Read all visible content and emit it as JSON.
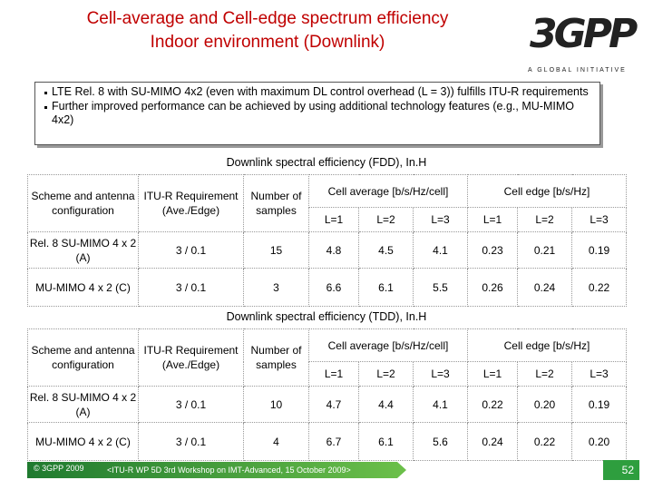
{
  "title": [
    "Cell-average and Cell-edge spectrum efficiency",
    "Indoor environment (Downlink)"
  ],
  "logo": {
    "name": "3GPP",
    "tagline": "A GLOBAL INITIATIVE"
  },
  "bullets": [
    "LTE Rel. 8 with SU-MIMO 4x2 (even with maximum DL control overhead (L = 3)) fulfills ITU-R requirements",
    "Further improved performance can be achieved by using additional technology features (e.g., MU-MIMO 4x2)"
  ],
  "tables": [
    {
      "caption": "Downlink spectral efficiency (FDD), In.H",
      "headers": [
        "Scheme and antenna configuration",
        "ITU-R Requirement (Ave./Edge)",
        "Number of samples",
        "Cell average [b/s/Hz/cell]",
        "Cell edge [b/s/Hz]"
      ],
      "sub_headers": [
        "L=1",
        "L=2",
        "L=3",
        "L=1",
        "L=2",
        "L=3"
      ],
      "rows": [
        [
          "Rel. 8 SU-MIMO 4 x 2 (A)",
          "3 / 0.1",
          "15",
          "4.8",
          "4.5",
          "4.1",
          "0.23",
          "0.21",
          "0.19"
        ],
        [
          "MU-MIMO 4 x 2 (C)",
          "3 / 0.1",
          "3",
          "6.6",
          "6.1",
          "5.5",
          "0.26",
          "0.24",
          "0.22"
        ]
      ]
    },
    {
      "caption": "Downlink spectral efficiency (TDD), In.H",
      "headers": [
        "Scheme and antenna configuration",
        "ITU-R Requirement (Ave./Edge)",
        "Number of samples",
        "Cell average [b/s/Hz/cell]",
        "Cell edge [b/s/Hz]"
      ],
      "sub_headers": [
        "L=1",
        "L=2",
        "L=3",
        "L=1",
        "L=2",
        "L=3"
      ],
      "rows": [
        [
          "Rel. 8 SU-MIMO 4 x 2 (A)",
          "3 / 0.1",
          "10",
          "4.7",
          "4.4",
          "4.1",
          "0.22",
          "0.20",
          "0.19"
        ],
        [
          "MU-MIMO 4 x 2 (C)",
          "3 / 0.1",
          "4",
          "6.7",
          "6.1",
          "5.6",
          "0.24",
          "0.22",
          "0.20"
        ]
      ]
    }
  ],
  "footer": {
    "copyright": "© 3GPP 2009",
    "event": "<ITU-R WP 5D 3rd Workshop on IMT-Advanced, 15 October 2009>"
  },
  "page_number": "52"
}
